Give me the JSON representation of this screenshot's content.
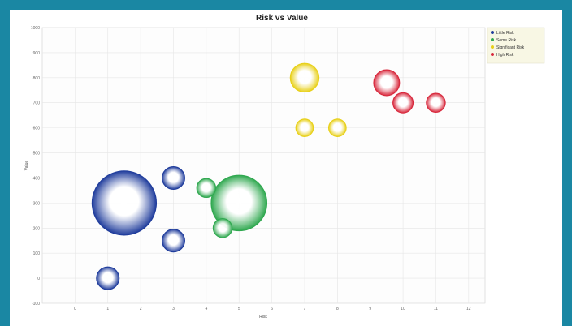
{
  "chart_data": {
    "type": "bubble",
    "title": "Risk vs Value",
    "xlabel": "Risk",
    "ylabel": "Value",
    "xlim": [
      -1,
      12.5
    ],
    "ylim": [
      -1,
      10
    ],
    "x_ticks": [
      "0",
      "1",
      "2",
      "3",
      "4",
      "5",
      "6",
      "7",
      "8",
      "9",
      "10",
      "11",
      "12"
    ],
    "y_ticks": [
      "-100",
      "0",
      "100",
      "200",
      "300",
      "400",
      "500",
      "600",
      "700",
      "800",
      "900",
      "1000"
    ],
    "legend_position": "top-right",
    "grid": true,
    "series": [
      {
        "name": "Little Risk",
        "color": "#1f3c9c",
        "points": [
          {
            "x": 1.0,
            "y": 0.0,
            "size": 1.0,
            "label": ""
          },
          {
            "x": 1.5,
            "y": 3.0,
            "size": 8.0,
            "label": ""
          },
          {
            "x": 3.0,
            "y": 4.0,
            "size": 1.0,
            "label": ""
          },
          {
            "x": 3.0,
            "y": 1.5,
            "size": 1.0,
            "label": ""
          }
        ]
      },
      {
        "name": "Some Risk",
        "color": "#2fa84f",
        "points": [
          {
            "x": 5.0,
            "y": 3.0,
            "size": 6.0,
            "label": ""
          },
          {
            "x": 4.0,
            "y": 3.6,
            "size": 0.7,
            "label": ""
          },
          {
            "x": 4.5,
            "y": 2.0,
            "size": 0.7,
            "label": ""
          }
        ]
      },
      {
        "name": "Significant Risk",
        "color": "#e8d018",
        "points": [
          {
            "x": 7.0,
            "y": 8.0,
            "size": 1.6,
            "label": ""
          },
          {
            "x": 7.0,
            "y": 6.0,
            "size": 0.6,
            "label": ""
          },
          {
            "x": 8.0,
            "y": 6.0,
            "size": 0.6,
            "label": ""
          }
        ]
      },
      {
        "name": "High Risk",
        "color": "#d8283c",
        "points": [
          {
            "x": 9.5,
            "y": 7.8,
            "size": 1.3,
            "label": ""
          },
          {
            "x": 10.0,
            "y": 7.0,
            "size": 0.8,
            "label": ""
          },
          {
            "x": 11.0,
            "y": 7.0,
            "size": 0.7,
            "label": ""
          }
        ]
      }
    ]
  }
}
